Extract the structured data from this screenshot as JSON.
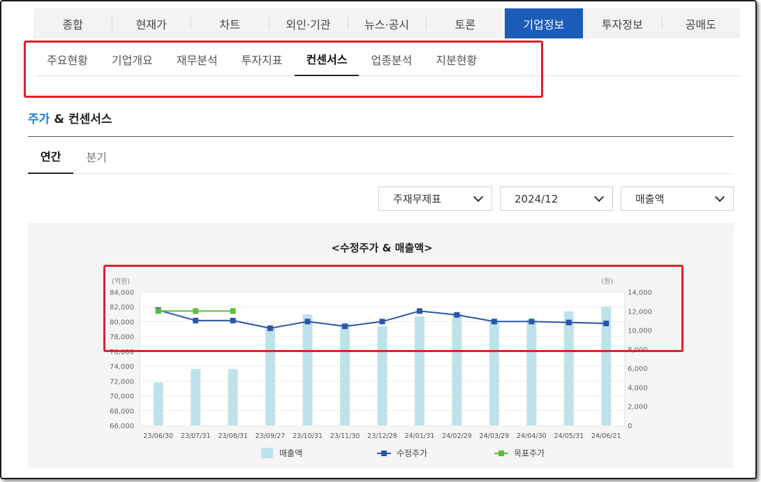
{
  "main_tabs": [
    {
      "label": "종합"
    },
    {
      "label": "현재가"
    },
    {
      "label": "차트"
    },
    {
      "label": "외인·기관"
    },
    {
      "label": "뉴스·공시"
    },
    {
      "label": "토론"
    },
    {
      "label": "기업정보"
    },
    {
      "label": "투자정보"
    },
    {
      "label": "공매도"
    }
  ],
  "main_tab_active": 6,
  "sub_tabs": [
    {
      "label": "주요현황"
    },
    {
      "label": "기업개요"
    },
    {
      "label": "재무분석"
    },
    {
      "label": "투자지표"
    },
    {
      "label": "컨센서스"
    },
    {
      "label": "업종분석"
    },
    {
      "label": "지분현황"
    }
  ],
  "sub_tab_active": 4,
  "section": {
    "title_accent": "주가",
    "title_rest": " & 컨센서스"
  },
  "period_tabs": [
    {
      "label": "연간"
    },
    {
      "label": "분기"
    }
  ],
  "period_tab_active": 0,
  "selects": {
    "statement": "주재무제표",
    "period": "2024/12",
    "metric": "매출액"
  },
  "colors": {
    "accent": "#1b5cb8",
    "bar": "#bfe2ea",
    "price_line": "#2a56a8",
    "target_line": "#5cbd3c",
    "highlight": "#e0202a"
  },
  "chart_data": {
    "type": "bar+line",
    "title": "<수정주가 & 매출액>",
    "left_unit": "(억원)",
    "right_unit": "(원)",
    "categories": [
      "23/06/30",
      "23/07/31",
      "23/08/31",
      "23/09/27",
      "23/10/31",
      "23/11/30",
      "23/12/28",
      "24/01/31",
      "24/02/29",
      "24/03/29",
      "24/04/30",
      "24/05/31",
      "24/06/21"
    ],
    "left_axis": {
      "min": 66000,
      "max": 84000,
      "ticks": [
        "84,000",
        "82,000",
        "80,000",
        "78,000",
        "76,000",
        "74,000",
        "72,000",
        "70,000",
        "68,000",
        "66,000"
      ]
    },
    "right_axis": {
      "min": 0,
      "max": 14000,
      "ticks": [
        "14,000",
        "12,000",
        "10,000",
        "8,000",
        "6,000",
        "4,000",
        "2,000",
        "0"
      ]
    },
    "series": [
      {
        "name": "매출액",
        "kind": "bar",
        "axis": "left",
        "values": [
          71800,
          73600,
          73600,
          79200,
          81000,
          79700,
          79400,
          80700,
          81100,
          80200,
          80200,
          81400,
          82000
        ]
      },
      {
        "name": "수정주가",
        "kind": "line",
        "axis": "right",
        "values": [
          12100,
          11000,
          11000,
          10200,
          10900,
          10400,
          10900,
          12000,
          11600,
          10900,
          10900,
          10800,
          10700
        ]
      },
      {
        "name": "목표주가",
        "kind": "line",
        "axis": "right",
        "values": [
          12000,
          12000,
          12000,
          null,
          null,
          null,
          null,
          null,
          null,
          null,
          null,
          null,
          null
        ]
      }
    ],
    "legend_position": "bottom"
  }
}
